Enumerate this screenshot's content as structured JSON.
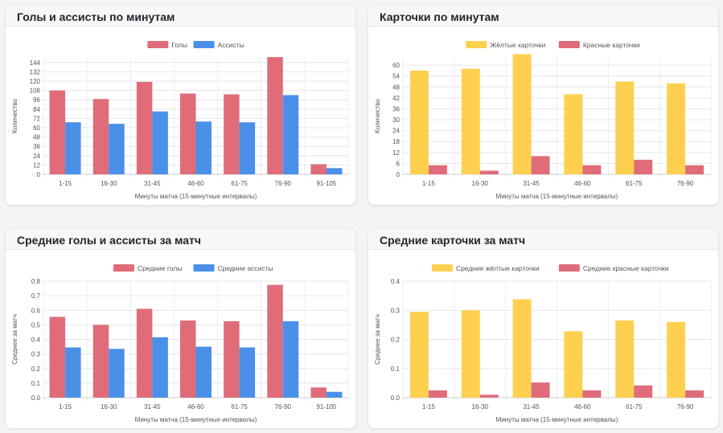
{
  "charts": [
    {
      "title": "Голы и ассисты по минутам",
      "chart_data": {
        "type": "bar",
        "categories": [
          "1-15",
          "16-30",
          "31-45",
          "46-60",
          "61-75",
          "76-90",
          "91-105"
        ],
        "series": [
          {
            "name": "Голы",
            "color": "#e06c7a",
            "values": [
              108,
              97,
              119,
              104,
              103,
              151,
              13
            ]
          },
          {
            "name": "Ассисты",
            "color": "#4a90e8",
            "values": [
              67,
              65,
              81,
              68,
              67,
              102,
              8
            ]
          }
        ],
        "xlabel": "Минуты матча (15-минутные интервалы)",
        "ylabel": "Количество",
        "ylim": [
          0,
          150
        ],
        "yticks": [
          "0",
          "12",
          "24",
          "36",
          "48",
          "60",
          "72",
          "84",
          "96",
          "108",
          "120",
          "132",
          "144"
        ],
        "legend": "top-center",
        "grid": true
      }
    },
    {
      "title": "Карточки по минутам",
      "chart_data": {
        "type": "bar",
        "categories": [
          "1-15",
          "16-30",
          "31-45",
          "46-60",
          "61-75",
          "76-90"
        ],
        "series": [
          {
            "name": "Жёлтые карточки",
            "color": "#ffd04f",
            "values": [
              57,
              58,
              66,
              44,
              51,
              50
            ]
          },
          {
            "name": "Красные карточки",
            "color": "#e06c7a",
            "values": [
              5,
              2,
              10,
              5,
              8,
              5
            ]
          }
        ],
        "xlabel": "Минуты матча (15-минутные интервалы)",
        "ylabel": "Количество",
        "ylim": [
          0,
          64
        ],
        "yticks": [
          "0",
          "6",
          "12",
          "18",
          "24",
          "30",
          "36",
          "42",
          "48",
          "54",
          "60"
        ],
        "legend": "top-center",
        "grid": true
      }
    },
    {
      "title": "Средние голы и ассисты за матч",
      "chart_data": {
        "type": "bar",
        "categories": [
          "1-15",
          "16-30",
          "31-45",
          "46-60",
          "61-75",
          "76-90",
          "91-105"
        ],
        "series": [
          {
            "name": "Средние голы",
            "color": "#e06c7a",
            "values": [
              0.555,
              0.5,
              0.61,
              0.53,
              0.525,
              0.775,
              0.07
            ]
          },
          {
            "name": "Средние ассисты",
            "color": "#4a90e8",
            "values": [
              0.345,
              0.335,
              0.415,
              0.35,
              0.345,
              0.525,
              0.04
            ]
          }
        ],
        "xlabel": "Минуты матча (15-минутные интервалы)",
        "ylabel": "Среднее за матч",
        "ylim": [
          0,
          0.8
        ],
        "yticks": [
          "0.0",
          "0.1",
          "0.2",
          "0.3",
          "0.4",
          "0.5",
          "0.6",
          "0.7",
          "0.8"
        ],
        "legend": "top-center",
        "grid": true
      }
    },
    {
      "title": "Средние карточки за матч",
      "chart_data": {
        "type": "bar",
        "categories": [
          "1-15",
          "16-30",
          "31-45",
          "46-60",
          "61-75",
          "76-90"
        ],
        "series": [
          {
            "name": "Средние жёлтые карточки",
            "color": "#ffd04f",
            "values": [
              0.295,
              0.3,
              0.338,
              0.228,
              0.265,
              0.26
            ]
          },
          {
            "name": "Средние красные карточки",
            "color": "#e06c7a",
            "values": [
              0.025,
              0.01,
              0.052,
              0.025,
              0.042,
              0.025
            ]
          }
        ],
        "xlabel": "Минуты матча (15-минутные интервалы)",
        "ylabel": "Среднее за матч",
        "ylim": [
          0,
          0.4
        ],
        "yticks": [
          "0.0",
          "0.1",
          "0.2",
          "0.3",
          "0.4"
        ],
        "legend": "top-center",
        "grid": true
      }
    }
  ]
}
